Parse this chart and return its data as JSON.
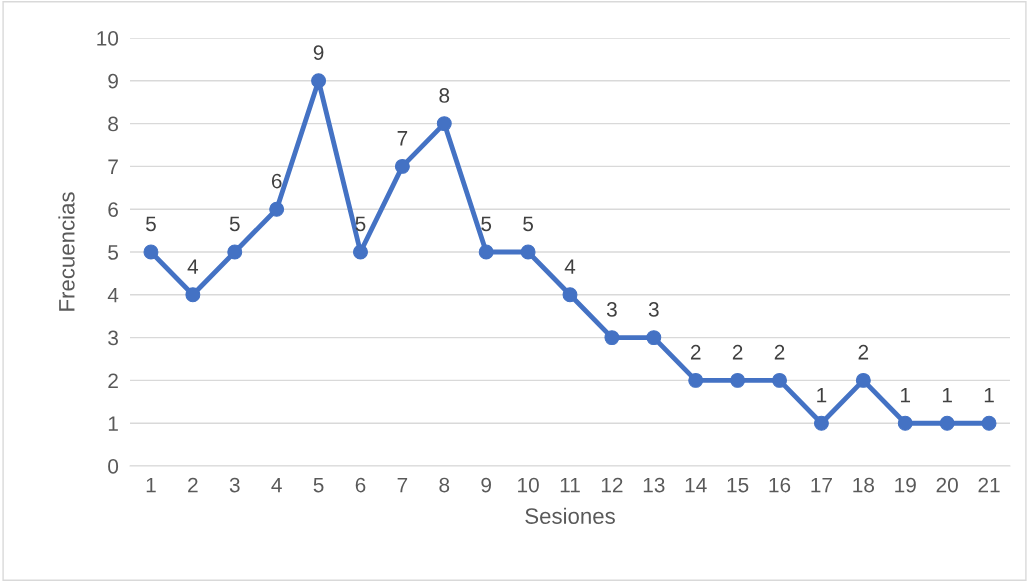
{
  "chart_data": {
    "type": "line",
    "xlabel": "Sesiones",
    "ylabel": "Frecuencias",
    "categories": [
      "1",
      "2",
      "3",
      "4",
      "5",
      "6",
      "7",
      "8",
      "9",
      "10",
      "11",
      "12",
      "13",
      "14",
      "15",
      "16",
      "17",
      "18",
      "19",
      "20",
      "21"
    ],
    "series": [
      {
        "color": "#4472c4",
        "values": [
          5,
          4,
          5,
          6,
          9,
          5,
          7,
          8,
          5,
          5,
          4,
          3,
          3,
          2,
          2,
          2,
          1,
          2,
          1,
          1,
          1
        ]
      }
    ],
    "ylim": [
      0,
      10
    ],
    "yticks": [
      0,
      1,
      2,
      3,
      4,
      5,
      6,
      7,
      8,
      9,
      10
    ],
    "grid": "y",
    "data_labels": true,
    "marker": "circle",
    "line_style": "solid"
  }
}
